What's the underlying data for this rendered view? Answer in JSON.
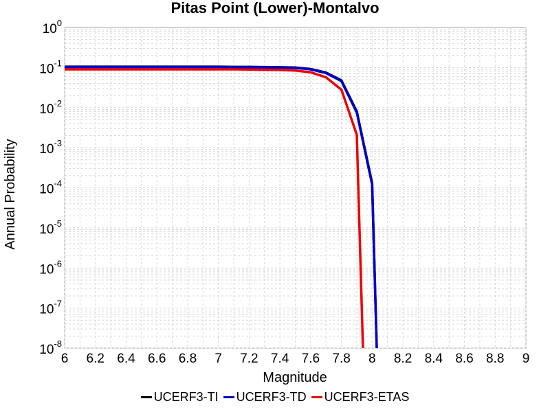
{
  "chart_data": {
    "type": "line",
    "title": "Pitas Point (Lower)-Montalvo",
    "xlabel": "Magnitude",
    "ylabel": "Annual Probability",
    "xlim": [
      6,
      9
    ],
    "ylim": [
      1e-08,
      1
    ],
    "yscale": "log",
    "grid": true,
    "legend_position": "bottom",
    "x_ticks": [
      "6",
      "6.2",
      "6.4",
      "6.6",
      "6.8",
      "7",
      "7.2",
      "7.4",
      "7.6",
      "7.8",
      "8",
      "8.2",
      "8.4",
      "8.6",
      "8.8",
      "9"
    ],
    "y_ticks": [
      {
        "base": "10",
        "exp": "0"
      },
      {
        "base": "10",
        "exp": "-1"
      },
      {
        "base": "10",
        "exp": "-2"
      },
      {
        "base": "10",
        "exp": "-3"
      },
      {
        "base": "10",
        "exp": "-4"
      },
      {
        "base": "10",
        "exp": "-5"
      },
      {
        "base": "10",
        "exp": "-6"
      },
      {
        "base": "10",
        "exp": "-7"
      },
      {
        "base": "10",
        "exp": "-8"
      }
    ],
    "series": [
      {
        "name": "UCERF3-TI",
        "color": "#000000",
        "x": [
          6.0,
          6.1,
          6.2,
          6.3,
          6.4,
          6.5,
          6.6,
          6.7,
          6.8,
          6.9,
          7.0,
          7.1,
          7.2,
          7.3,
          7.4,
          7.5,
          7.6,
          7.7,
          7.8,
          7.9,
          8.0,
          8.03
        ],
        "y": [
          0.105,
          0.105,
          0.105,
          0.105,
          0.105,
          0.105,
          0.105,
          0.105,
          0.105,
          0.105,
          0.105,
          0.104,
          0.104,
          0.103,
          0.102,
          0.1,
          0.092,
          0.075,
          0.048,
          0.008,
          0.00013,
          1e-08
        ]
      },
      {
        "name": "UCERF3-TD",
        "color": "#0000cc",
        "x": [
          6.0,
          6.1,
          6.2,
          6.3,
          6.4,
          6.5,
          6.6,
          6.7,
          6.8,
          6.9,
          7.0,
          7.1,
          7.2,
          7.3,
          7.4,
          7.5,
          7.6,
          7.7,
          7.8,
          7.9,
          8.0,
          8.03
        ],
        "y": [
          0.103,
          0.103,
          0.103,
          0.103,
          0.103,
          0.103,
          0.103,
          0.103,
          0.103,
          0.103,
          0.103,
          0.102,
          0.102,
          0.101,
          0.1,
          0.098,
          0.09,
          0.073,
          0.046,
          0.0075,
          0.00012,
          1e-08
        ]
      },
      {
        "name": "UCERF3-ETAS",
        "color": "#ee0000",
        "x": [
          6.0,
          6.1,
          6.2,
          6.3,
          6.4,
          6.5,
          6.6,
          6.7,
          6.8,
          6.9,
          7.0,
          7.1,
          7.2,
          7.3,
          7.4,
          7.5,
          7.6,
          7.7,
          7.8,
          7.9,
          7.94
        ],
        "y": [
          0.09,
          0.09,
          0.09,
          0.09,
          0.09,
          0.09,
          0.09,
          0.09,
          0.09,
          0.09,
          0.09,
          0.09,
          0.089,
          0.088,
          0.087,
          0.084,
          0.076,
          0.057,
          0.028,
          0.0021,
          1e-08
        ]
      }
    ]
  }
}
